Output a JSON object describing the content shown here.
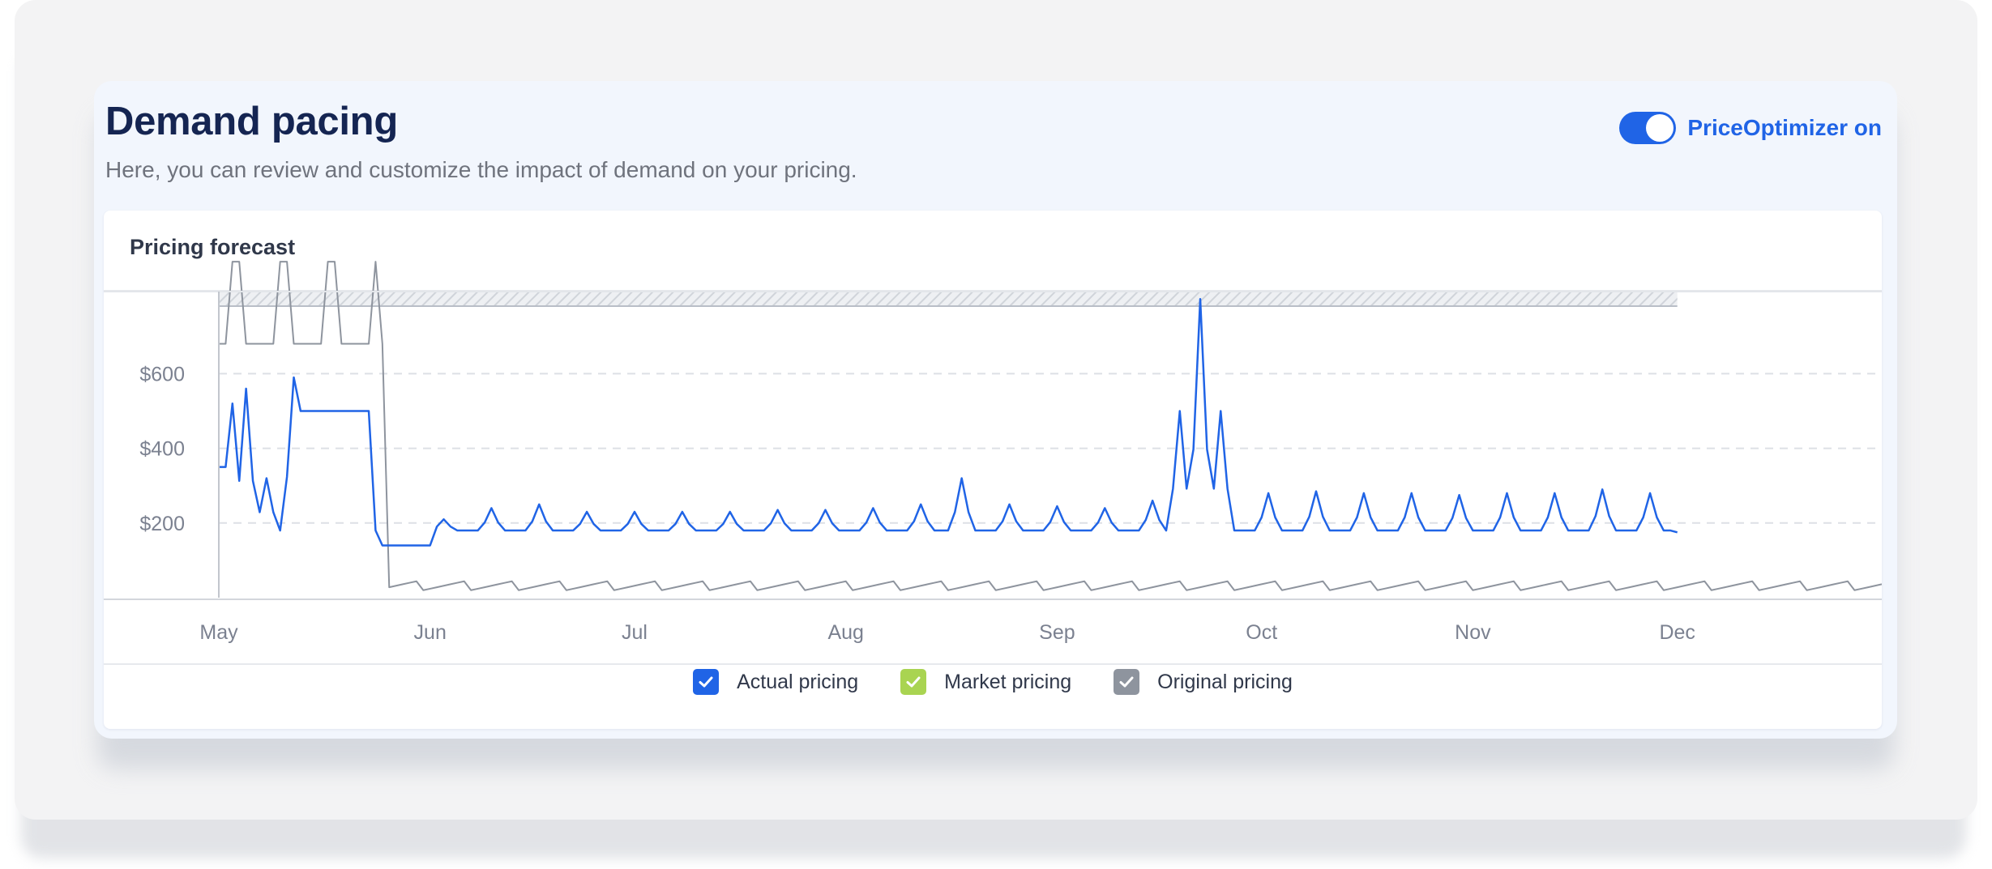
{
  "header": {
    "title": "Demand pacing",
    "subtitle": "Here, you can review and customize the impact of demand on your pricing.",
    "toggle_label": "PriceOptimizer on",
    "toggle_on": true
  },
  "panel": {
    "title": "Pricing forecast"
  },
  "colors": {
    "accent": "#2064e6",
    "actual": "#2064e6",
    "market": "#a9d451",
    "original": "#8e949e",
    "title": "#152552"
  },
  "legend": [
    {
      "key": "actual",
      "label": "Actual pricing",
      "checked": true,
      "color": "#2064e6"
    },
    {
      "key": "market",
      "label": "Market pricing",
      "checked": true,
      "color": "#a9d451"
    },
    {
      "key": "original",
      "label": "Original pricing",
      "checked": true,
      "color": "#8e949e"
    }
  ],
  "chart_data": {
    "type": "line",
    "title": "Pricing forecast",
    "xlabel": "",
    "ylabel": "",
    "x_tick_labels": [
      "May",
      "Jun",
      "Jul",
      "Aug",
      "Sep",
      "Oct",
      "Nov",
      "Dec"
    ],
    "y_tick_labels": [
      "$200",
      "$400",
      "$600"
    ],
    "y_ticks": [
      200,
      400,
      600
    ],
    "ylim": [
      0,
      820
    ],
    "xlim": [
      "May 1",
      "Dec 31"
    ],
    "grid": "horizontal dashed",
    "legend_position": "bottom-center",
    "series": [
      {
        "name": "Actual pricing",
        "x_start": "May 1",
        "x_end": "Dec 1",
        "peaks": [
          [
            "May 3",
            520
          ],
          [
            "May 5",
            560
          ],
          [
            "May 8",
            320
          ],
          [
            "May 12",
            590
          ],
          [
            "Jun 3",
            210
          ],
          [
            "Jun 10",
            240
          ],
          [
            "Jun 17",
            250
          ],
          [
            "Jun 24",
            230
          ],
          [
            "Jul 1",
            230
          ],
          [
            "Jul 8",
            230
          ],
          [
            "Jul 15",
            230
          ],
          [
            "Jul 22",
            235
          ],
          [
            "Jul 29",
            235
          ],
          [
            "Aug 5",
            240
          ],
          [
            "Aug 12",
            250
          ],
          [
            "Aug 18",
            320
          ],
          [
            "Aug 25",
            250
          ],
          [
            "Sep 1",
            245
          ],
          [
            "Sep 8",
            240
          ],
          [
            "Sep 15",
            260
          ],
          [
            "Sep 19",
            500
          ],
          [
            "Sep 22",
            800
          ],
          [
            "Sep 25",
            500
          ],
          [
            "Oct 2",
            280
          ],
          [
            "Oct 9",
            285
          ],
          [
            "Oct 16",
            280
          ],
          [
            "Oct 23",
            280
          ],
          [
            "Oct 30",
            275
          ],
          [
            "Nov 6",
            280
          ],
          [
            "Nov 13",
            280
          ],
          [
            "Nov 20",
            290
          ],
          [
            "Nov 27",
            280
          ]
        ],
        "base_level": 180,
        "end_value": 175
      },
      {
        "name": "Original pricing",
        "x_start": "May 1",
        "x_end": "Dec 31",
        "early_level": 680,
        "early_period": [
          "May 1",
          "May 24"
        ],
        "later_level": 20
      }
    ],
    "shaded_band": {
      "x_start": "May 1",
      "x_end": "Dec 1",
      "description": "hatched band above plot top"
    }
  }
}
